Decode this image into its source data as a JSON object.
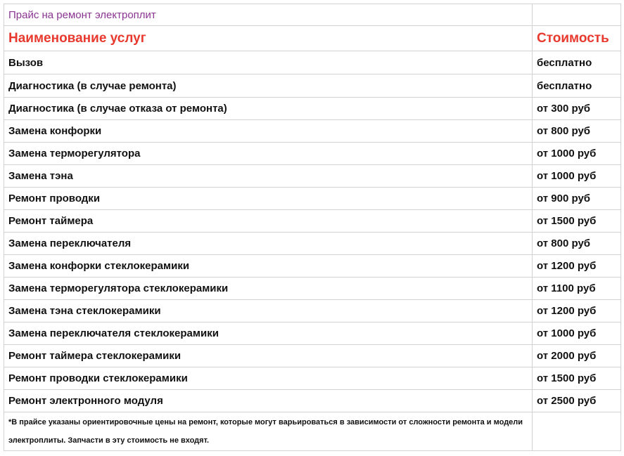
{
  "title": "Прайс на ремонт электроплит",
  "header": {
    "service": "Наименование услуг",
    "price": "Стоимость"
  },
  "rows": [
    {
      "service": "Вызов",
      "price": "бесплатно"
    },
    {
      "service": "Диагностика (в случае ремонта)",
      "price": "бесплатно"
    },
    {
      "service": "Диагностика (в случае отказа от ремонта)",
      "price": "от 300 руб"
    },
    {
      "service": "Замена конфорки",
      "price": "от 800 руб"
    },
    {
      "service": "Замена терморегулятора",
      "price": "от 1000 руб"
    },
    {
      "service": "Замена тэна",
      "price": "от 1000 руб"
    },
    {
      "service": "Ремонт проводки",
      "price": "от 900 руб"
    },
    {
      "service": "Ремонт таймера",
      "price": "от 1500 руб"
    },
    {
      "service": "Замена переключателя",
      "price": "от 800 руб"
    },
    {
      "service": "Замена конфорки стеклокерамики",
      "price": "от 1200 руб"
    },
    {
      "service": "Замена терморегулятора стеклокерамики",
      "price": "от 1100 руб"
    },
    {
      "service": "Замена тэна стеклокерамики",
      "price": "от 1200 руб"
    },
    {
      "service": "Замена переключателя стеклокерамики",
      "price": "от 1000 руб"
    },
    {
      "service": "Ремонт таймера стеклокерамики",
      "price": "от 2000 руб"
    },
    {
      "service": "Ремонт проводки стеклокерамики",
      "price": "от 1500 руб"
    },
    {
      "service": "Ремонт электронного модуля",
      "price": "от 2500 руб"
    }
  ],
  "note": "*В прайсе указаны ориентировочные цены на ремонт, которые могут варьироваться в зависимости от сложности ремонта и модели электроплиты. Запчасти в эту стоимость не входят.",
  "colors": {
    "title": "#8b3592",
    "header": "#e8392f",
    "border": "#d2d2d2"
  }
}
